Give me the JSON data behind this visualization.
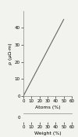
{
  "ylabel": "ρ (μΩ·m)",
  "xlabel_atoms": "Atoms (%)",
  "xlabel_weight": "Weight (%)",
  "line_x": [
    0,
    50
  ],
  "line_y": [
    0,
    45
  ],
  "ylim": [
    0,
    50
  ],
  "xlim": [
    0,
    60
  ],
  "yticks": [
    0,
    10,
    20,
    30,
    40
  ],
  "xticks": [
    0,
    10,
    20,
    30,
    40,
    50,
    60
  ],
  "line_color": "#666666",
  "line_width": 0.8,
  "bg_color": "#f2f2ee",
  "tick_fontsize": 4.0,
  "label_fontsize": 4.5,
  "ylabel_fontsize": 4.5
}
